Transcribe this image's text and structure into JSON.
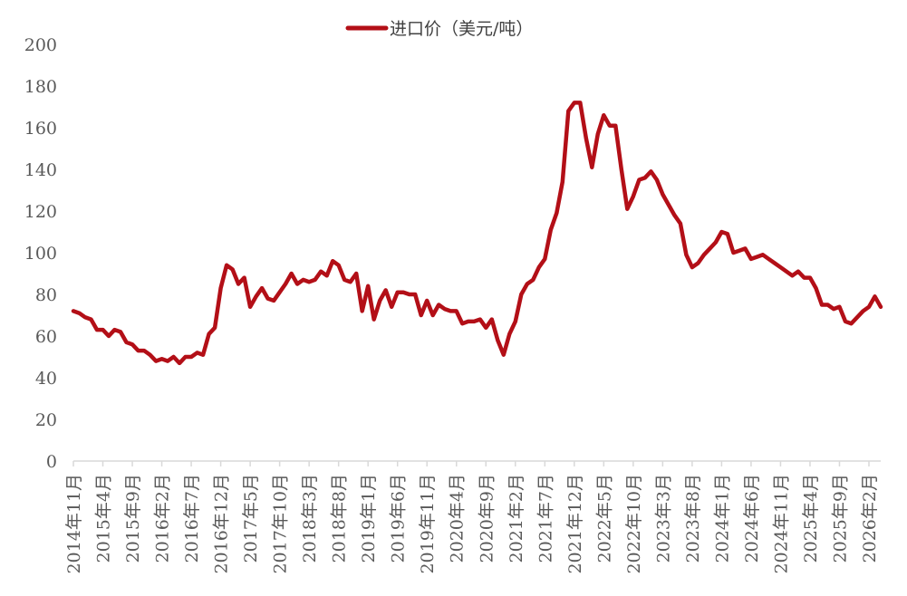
{
  "chart_data": {
    "type": "line",
    "title": "",
    "xlabel": "",
    "ylabel": "",
    "ylim": [
      0,
      200
    ],
    "yticks": [
      0,
      20,
      40,
      60,
      80,
      100,
      120,
      140,
      160,
      180,
      200
    ],
    "grid": false,
    "legend_position": "top-center",
    "series_color": "#B30F17",
    "x_tick_labels": [
      "2014年11月",
      "2015年4月",
      "2015年9月",
      "2016年2月",
      "2016年7月",
      "2016年12月",
      "2017年5月",
      "2017年10月",
      "2018年3月",
      "2018年8月",
      "2019年1月",
      "2019年6月",
      "2019年11月",
      "2020年4月",
      "2020年9月",
      "2021年2月",
      "2021年7月",
      "2021年12月",
      "2022年5月",
      "2022年10月",
      "2023年3月",
      "2023年8月",
      "2024年1月",
      "2024年6月",
      "2024年11月",
      "2025年4月",
      "2025年9月",
      "2026年2月"
    ],
    "x_start": "2014-11",
    "x_end": "2026-02",
    "x_interval": "monthly",
    "series": [
      {
        "name": "进口价（美元/吨）",
        "values": [
          72,
          71,
          69,
          68,
          63,
          63,
          60,
          63,
          62,
          57,
          56,
          53,
          53,
          51,
          48,
          49,
          48,
          50,
          47,
          50,
          50,
          52,
          51,
          61,
          64,
          83,
          94,
          92,
          85,
          88,
          74,
          79,
          83,
          78,
          77,
          81,
          85,
          90,
          85,
          87,
          86,
          87,
          91,
          89,
          96,
          94,
          87,
          86,
          90,
          72,
          84,
          68,
          77,
          82,
          74,
          81,
          81,
          80,
          80,
          70,
          77,
          70,
          75,
          73,
          72,
          72,
          66,
          67,
          67,
          68,
          64,
          68,
          58,
          51,
          61,
          67,
          80,
          85,
          87,
          93,
          97,
          111,
          119,
          134,
          168,
          172,
          172,
          155,
          141,
          157,
          166,
          161,
          161,
          140,
          121,
          127,
          135,
          136,
          139,
          135,
          128,
          123,
          118,
          114,
          99,
          93,
          95,
          99,
          102,
          105,
          110,
          109,
          100,
          101,
          102,
          97,
          98,
          99,
          97,
          95,
          93,
          91,
          89,
          91,
          88,
          88,
          83,
          75,
          75,
          73,
          74,
          67,
          66,
          69,
          72,
          74,
          79,
          74
        ]
      }
    ]
  },
  "legend": {
    "label": "进口价（美元/吨）"
  }
}
